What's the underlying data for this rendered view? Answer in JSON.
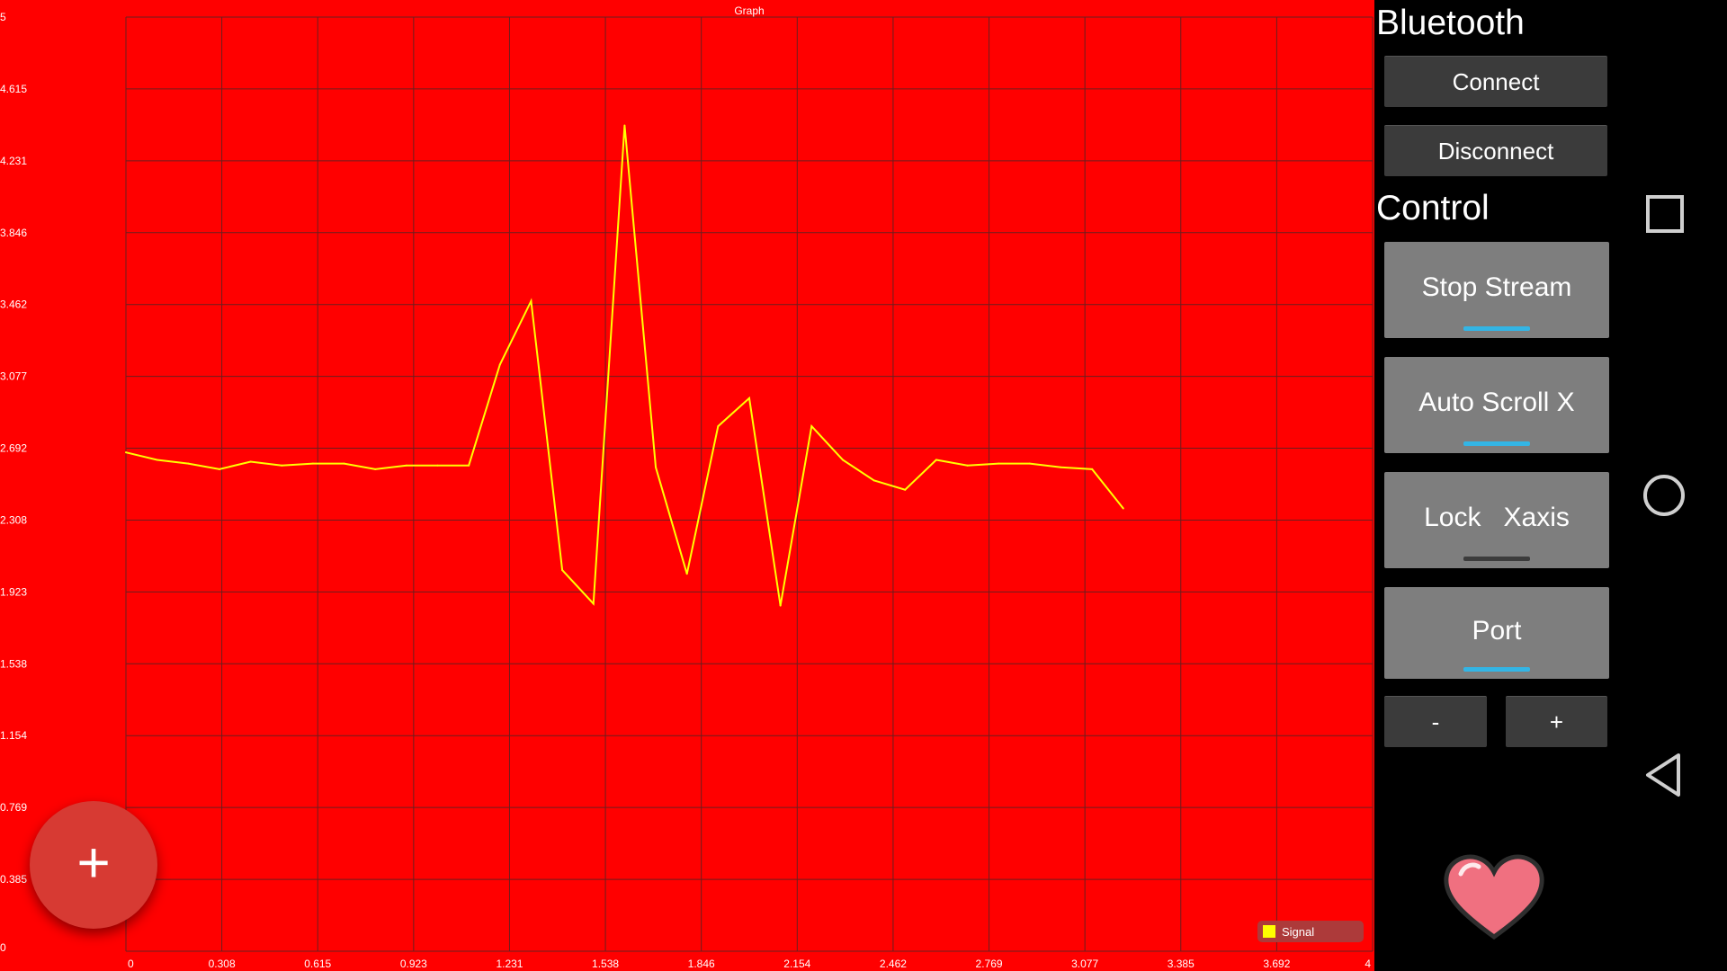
{
  "chart_data": {
    "type": "line",
    "title": "Graph",
    "xlim": [
      0,
      4
    ],
    "ylim": [
      0,
      5
    ],
    "grid": true,
    "legend_position": "bottom-right",
    "x_ticks": [
      "0",
      "0.308",
      "0.615",
      "0.923",
      "1.231",
      "1.538",
      "1.846",
      "2.154",
      "2.462",
      "2.769",
      "3.077",
      "3.385",
      "3.692",
      "4"
    ],
    "y_ticks": [
      "0",
      "0.385",
      "0.769",
      "1.154",
      "1.538",
      "1.923",
      "2.308",
      "2.692",
      "3.077",
      "3.462",
      "3.846",
      "4.231",
      "4.615",
      "5"
    ],
    "series": [
      {
        "name": "Signal",
        "color": "#ffff00",
        "x": [
          0,
          0.1,
          0.2,
          0.3,
          0.4,
          0.5,
          0.6,
          0.7,
          0.8,
          0.9,
          1.0,
          1.1,
          1.2,
          1.3,
          1.4,
          1.5,
          1.6,
          1.7,
          1.8,
          1.9,
          2.0,
          2.1,
          2.2,
          2.3,
          2.4,
          2.5,
          2.6,
          2.7,
          2.8,
          2.9,
          3.0,
          3.1,
          3.2
        ],
        "y": [
          2.67,
          2.63,
          2.61,
          2.58,
          2.62,
          2.6,
          2.61,
          2.61,
          2.58,
          2.6,
          2.6,
          2.6,
          3.14,
          3.48,
          2.04,
          1.86,
          4.42,
          2.59,
          2.02,
          2.81,
          2.96,
          1.85,
          2.81,
          2.63,
          2.52,
          2.47,
          2.63,
          2.6,
          2.61,
          2.61,
          2.59,
          2.58,
          2.37
        ]
      }
    ]
  },
  "fab": {
    "icon": "plus-icon",
    "glyph": "+"
  },
  "panel": {
    "bluetooth_title": "Bluetooth",
    "connect_label": "Connect",
    "disconnect_label": "Disconnect",
    "control_title": "Control",
    "toggles": [
      {
        "label": "Stop Stream",
        "on": true
      },
      {
        "label": "Auto Scroll X",
        "on": true
      },
      {
        "label": "Lock   Xaxis",
        "on": false
      },
      {
        "label": "Port",
        "on": true
      }
    ],
    "minus_label": "-",
    "plus_label": "+",
    "status_icon": "heart-icon"
  },
  "nav": {
    "recents_icon": "square-icon",
    "home_icon": "circle-icon",
    "back_icon": "triangle-back-icon"
  },
  "colors": {
    "chart_background": "#ff0000",
    "grid": "#6a1f1f",
    "signal": "#ffff00",
    "toggle_on": "#33b5e5",
    "fab": "#d73a33",
    "heart": "#f07080"
  }
}
